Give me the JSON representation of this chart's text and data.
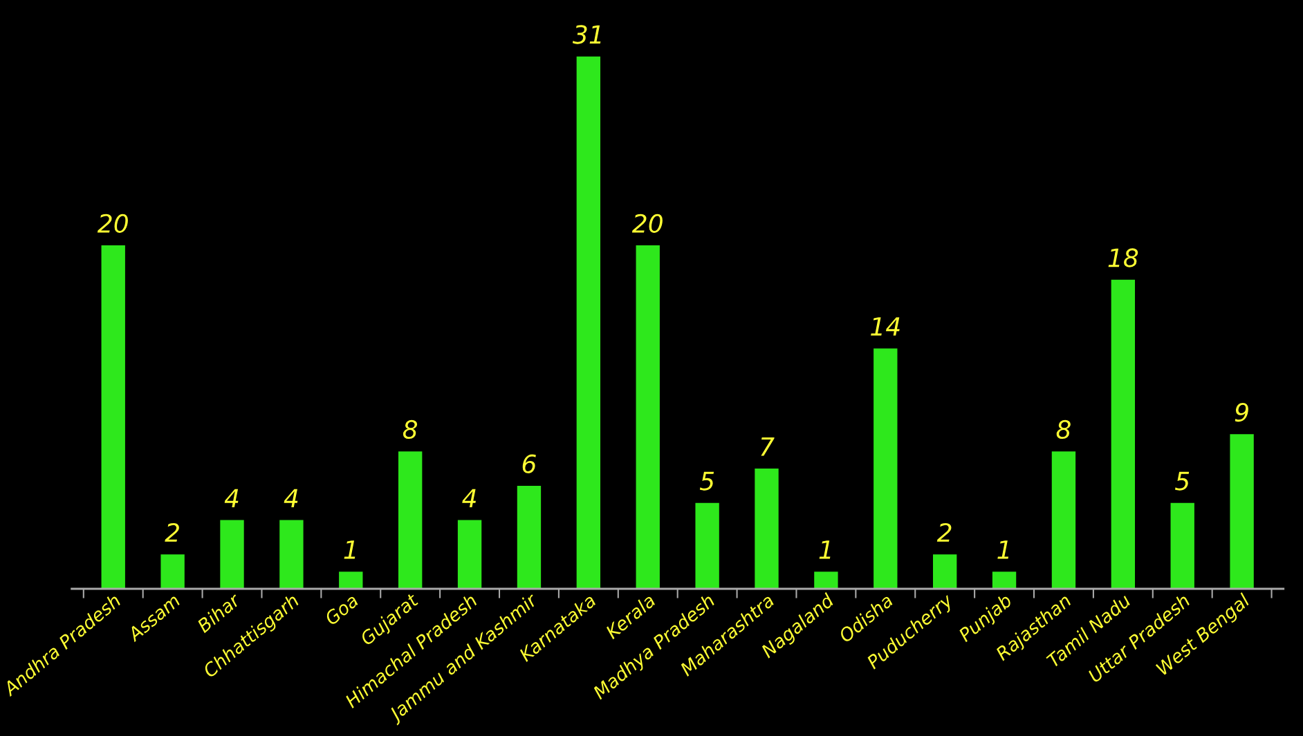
{
  "chart_data": {
    "type": "bar",
    "categories": [
      "Andhra Pradesh",
      "Assam",
      "Bihar",
      "Chhattisgarh",
      "Goa",
      "Gujarat",
      "Himachal Pradesh",
      "Jammu and Kashmir",
      "Karnataka",
      "Kerala",
      "Madhya Pradesh",
      "Maharashtra",
      "Nagaland",
      "Odisha",
      "Puducherry",
      "Punjab",
      "Rajasthan",
      "Tamil Nadu",
      "Uttar Pradesh",
      "West Bengal"
    ],
    "values": [
      20,
      2,
      4,
      4,
      1,
      8,
      4,
      6,
      31,
      20,
      5,
      7,
      1,
      14,
      2,
      1,
      8,
      18,
      5,
      9
    ],
    "color": "#2ee81c",
    "data_labels": true,
    "grid": false,
    "legend": false,
    "tick_labels": "x"
  }
}
